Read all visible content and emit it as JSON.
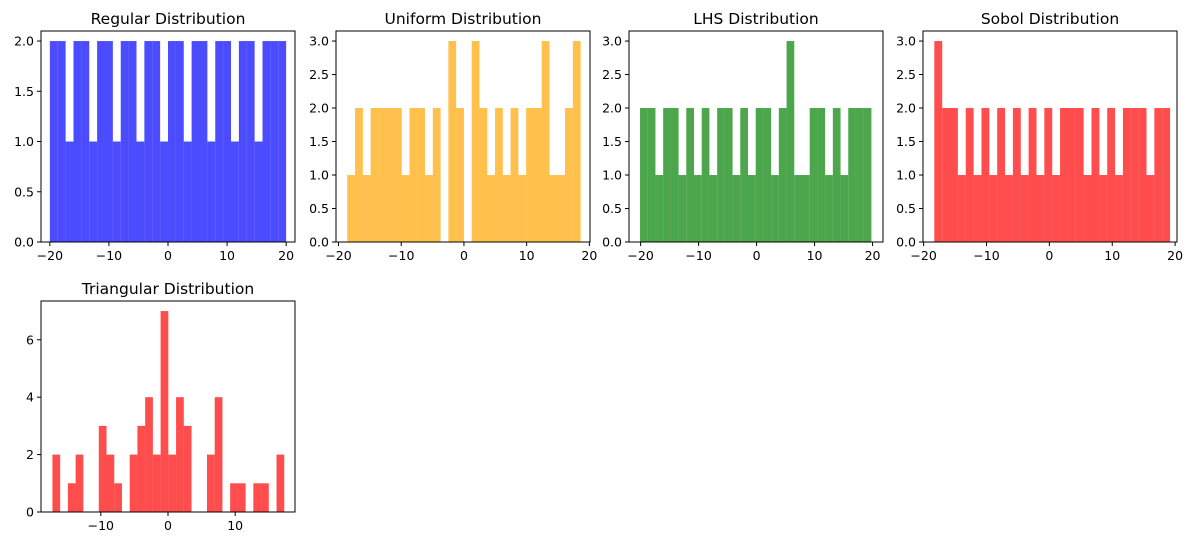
{
  "figure": {
    "background": "#ffffff"
  },
  "chart_data": [
    {
      "type": "bar",
      "subtype": "histogram",
      "title": "Regular Distribution",
      "color": "#0000ff",
      "alpha": 0.7,
      "xlim": [
        -21.5,
        21.5
      ],
      "ylim": [
        0,
        2.1
      ],
      "xticks": [
        -20,
        -10,
        0,
        10,
        20
      ],
      "xtick_labels": [
        "−20",
        "−10",
        "0",
        "10",
        "20"
      ],
      "yticks": [
        0,
        0.5,
        1,
        1.5,
        2
      ],
      "ytick_labels": [
        "0.0",
        "0.5",
        "1.0",
        "1.5",
        "2.0"
      ],
      "bin_start": -20,
      "bin_width": 1.3333,
      "counts": [
        2,
        2,
        1,
        2,
        2,
        1,
        2,
        2,
        1,
        2,
        2,
        1,
        2,
        2,
        1,
        2,
        2,
        1,
        2,
        2,
        1,
        2,
        2,
        1,
        2,
        2,
        1,
        2,
        2,
        2
      ]
    },
    {
      "type": "bar",
      "subtype": "histogram",
      "title": "Uniform Distribution",
      "color": "#ffa500",
      "alpha": 0.7,
      "xlim": [
        -20.4,
        20.1
      ],
      "ylim": [
        0,
        3.15
      ],
      "xticks": [
        -20,
        -10,
        0,
        10,
        20
      ],
      "xtick_labels": [
        "−20",
        "−10",
        "0",
        "10",
        "20"
      ],
      "yticks": [
        0,
        0.5,
        1,
        1.5,
        2,
        2.5,
        3
      ],
      "ytick_labels": [
        "0.0",
        "0.5",
        "1.0",
        "1.5",
        "2.0",
        "2.5",
        "3.0"
      ],
      "bin_start": -18.6,
      "bin_width": 1.24,
      "counts": [
        1,
        2,
        1,
        2,
        2,
        2,
        2,
        1,
        2,
        2,
        1,
        2,
        0,
        3,
        2,
        0,
        3,
        2,
        1,
        2,
        1,
        2,
        1,
        2,
        2,
        3,
        1,
        1,
        2,
        3
      ]
    },
    {
      "type": "bar",
      "subtype": "histogram",
      "title": "LHS Distribution",
      "color": "#008000",
      "alpha": 0.7,
      "xlim": [
        -22.0,
        21.8
      ],
      "ylim": [
        0,
        3.15
      ],
      "xticks": [
        -20,
        -10,
        0,
        10,
        20
      ],
      "xtick_labels": [
        "−20",
        "−10",
        "0",
        "10",
        "20"
      ],
      "yticks": [
        0,
        0.5,
        1,
        1.5,
        2,
        2.5,
        3
      ],
      "ytick_labels": [
        "0.0",
        "0.5",
        "1.0",
        "1.5",
        "2.0",
        "2.5",
        "3.0"
      ],
      "bin_start": -20.1,
      "bin_width": 1.33,
      "counts": [
        2,
        2,
        1,
        2,
        2,
        1,
        2,
        1,
        2,
        1,
        2,
        2,
        1,
        2,
        1,
        2,
        2,
        1,
        2,
        3,
        1,
        1,
        2,
        2,
        1,
        2,
        1,
        2,
        2,
        2
      ]
    },
    {
      "type": "bar",
      "subtype": "histogram",
      "title": "Sobol Distribution",
      "color": "#ff0000",
      "alpha": 0.7,
      "xlim": [
        -20.1,
        20.3
      ],
      "ylim": [
        0,
        3.15
      ],
      "xticks": [
        -20,
        -10,
        0,
        10,
        20
      ],
      "xtick_labels": [
        "−20",
        "−10",
        "0",
        "10",
        "20"
      ],
      "yticks": [
        0,
        0.5,
        1,
        1.5,
        2,
        2.5,
        3
      ],
      "ytick_labels": [
        "0.0",
        "0.5",
        "1.0",
        "1.5",
        "2.0",
        "2.5",
        "3.0"
      ],
      "bin_start": -18.3,
      "bin_width": 1.25,
      "counts": [
        3,
        2,
        2,
        1,
        2,
        1,
        2,
        1,
        2,
        1,
        2,
        1,
        2,
        1,
        2,
        1,
        2,
        2,
        2,
        1,
        2,
        1,
        2,
        1,
        2,
        2,
        2,
        1,
        2,
        2
      ]
    },
    {
      "type": "bar",
      "subtype": "histogram",
      "title": "Triangular Distribution",
      "color": "#ff0000",
      "alpha": 0.7,
      "xlim": [
        -18.9,
        18.9
      ],
      "ylim": [
        0,
        7.35
      ],
      "xticks": [
        -10,
        0,
        10
      ],
      "xtick_labels": [
        "−10",
        "0",
        "10"
      ],
      "yticks": [
        0,
        2,
        4,
        6
      ],
      "ytick_labels": [
        "0",
        "2",
        "4",
        "6"
      ],
      "bin_start": -17.2,
      "bin_width": 1.15,
      "counts": [
        2,
        0,
        1,
        2,
        0,
        0,
        3,
        2,
        1,
        0,
        2,
        3,
        4,
        2,
        7,
        2,
        4,
        3,
        0,
        0,
        2,
        4,
        0,
        1,
        1,
        0,
        1,
        1,
        0,
        2
      ]
    }
  ]
}
